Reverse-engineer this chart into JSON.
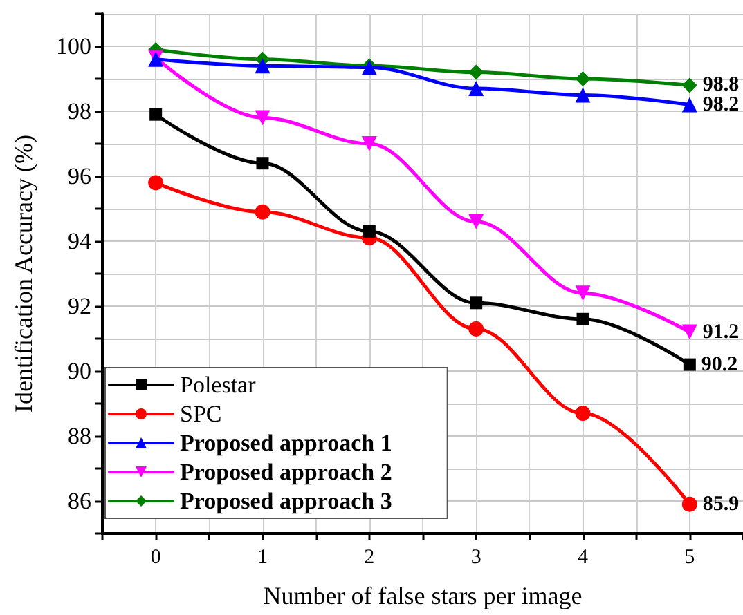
{
  "chart_data": {
    "type": "line",
    "xlabel": "Number of false stars per image",
    "ylabel": "Identification Accuracy (%)",
    "x": [
      0,
      1,
      2,
      3,
      4,
      5
    ],
    "xlim": [
      -0.5,
      5.5
    ],
    "xticks": [
      {
        "value": -0.5,
        "label": null
      },
      0,
      {
        "value": 0.5,
        "label": null
      },
      1,
      {
        "value": 1.5,
        "label": null
      },
      2,
      {
        "value": 2.5,
        "label": null
      },
      3,
      {
        "value": 3.5,
        "label": null
      },
      4,
      {
        "value": 4.5,
        "label": null
      },
      5,
      {
        "value": 5.5,
        "label": null
      }
    ],
    "ylim": [
      85,
      101
    ],
    "yticks": [
      {
        "value": 85,
        "label": null
      },
      86,
      {
        "value": 87,
        "label": null
      },
      88,
      {
        "value": 89,
        "label": null
      },
      90,
      {
        "value": 91,
        "label": null
      },
      92,
      {
        "value": 93,
        "label": null
      },
      94,
      {
        "value": 95,
        "label": null
      },
      96,
      {
        "value": 97,
        "label": null
      },
      98,
      {
        "value": 99,
        "label": null
      },
      100,
      {
        "value": 101,
        "label": null
      }
    ],
    "grid": true,
    "legend": "bottom left",
    "line_style": "solid",
    "series": [
      {
        "name": "Polestar",
        "color": "#000000",
        "marker": "square",
        "values": [
          97.9,
          96.4,
          94.3,
          92.1,
          91.6,
          90.2
        ],
        "value_labels": [
          null,
          null,
          null,
          null,
          null,
          "90.2"
        ]
      },
      {
        "name": "SPC",
        "color": "#ff0000",
        "marker": "circle",
        "values": [
          95.8,
          94.9,
          94.1,
          91.3,
          88.7,
          85.9
        ],
        "value_labels": [
          null,
          null,
          null,
          null,
          null,
          "85.9"
        ]
      },
      {
        "name": "Proposed approach 1",
        "color": "#0000ff",
        "marker": "triangle",
        "values": [
          99.6,
          99.4,
          99.35,
          98.7,
          98.5,
          98.2
        ],
        "value_labels": [
          null,
          null,
          null,
          null,
          null,
          "98.2"
        ]
      },
      {
        "name": "Proposed approach 2",
        "color": "#ff00ff",
        "marker": "triangle-down",
        "values": [
          99.65,
          97.8,
          97.0,
          94.6,
          92.4,
          91.2
        ],
        "value_labels": [
          null,
          null,
          null,
          null,
          null,
          "91.2"
        ]
      },
      {
        "name": "Proposed approach 3",
        "color": "#008000",
        "marker": "diamond",
        "values": [
          99.9,
          99.6,
          99.4,
          99.2,
          99.0,
          98.8
        ],
        "value_labels": [
          null,
          null,
          null,
          null,
          null,
          "98.8"
        ]
      }
    ]
  }
}
